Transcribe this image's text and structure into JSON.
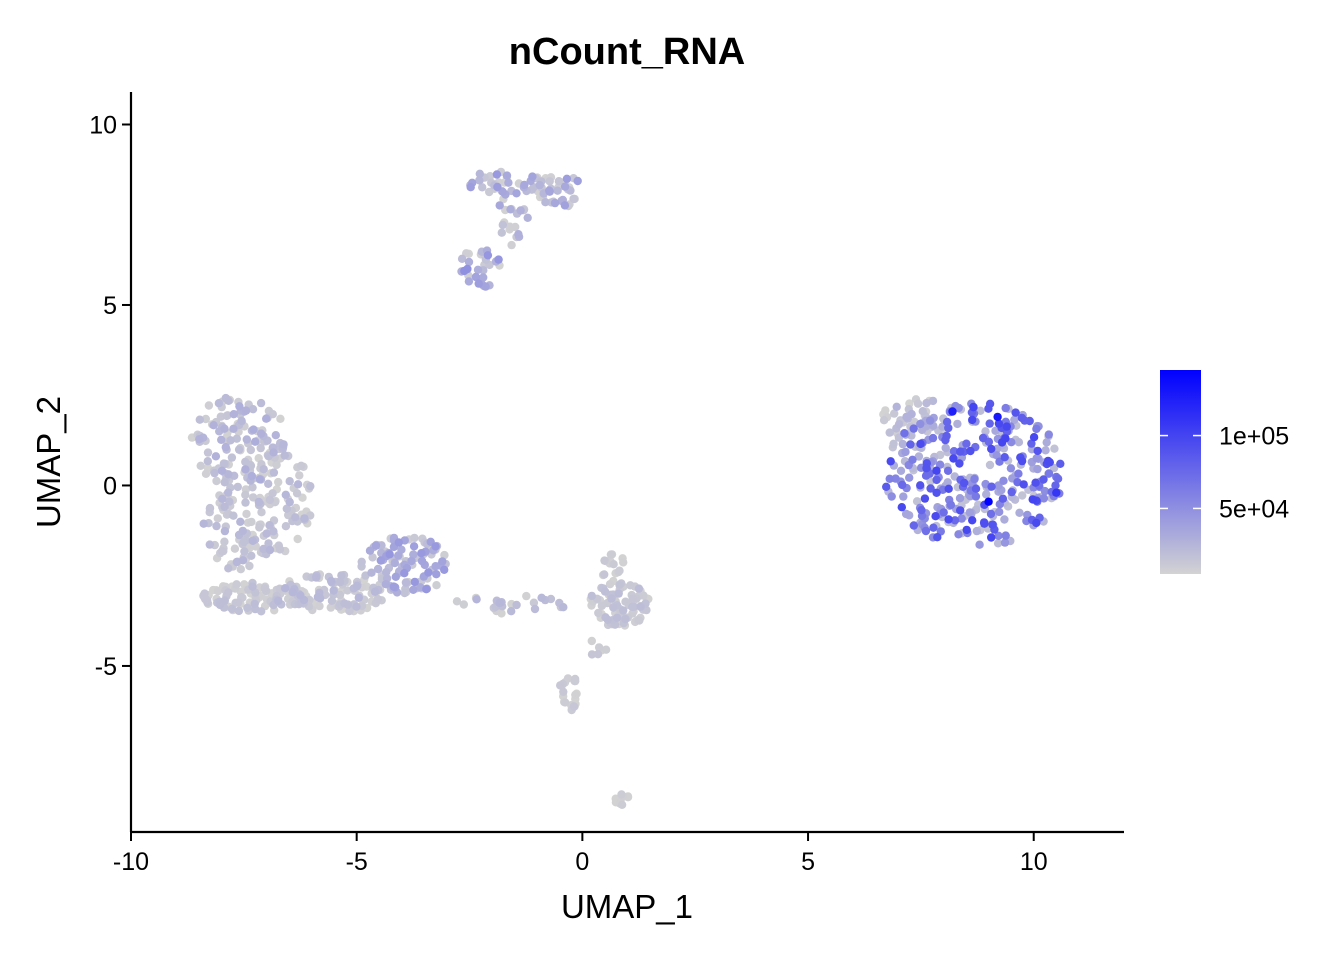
{
  "chart_data": {
    "type": "scatter",
    "title": "nCount_RNA",
    "xlabel": "UMAP_1",
    "ylabel": "UMAP_2",
    "xlim": [
      -10,
      12
    ],
    "ylim": [
      -9.6,
      10.9
    ],
    "xticks": [
      -10,
      -5,
      0,
      5,
      10
    ],
    "xtick_labels": [
      "-10",
      "-5",
      "0",
      "5",
      "10"
    ],
    "yticks": [
      -5,
      0,
      5,
      10
    ],
    "ytick_labels": [
      "-5",
      "0",
      "5",
      "10"
    ],
    "grid": false,
    "legend_position": "right",
    "color_scale": {
      "low_color": "#d3d3d3",
      "high_color": "#0000ff",
      "min": 5000,
      "max": 145000,
      "ticks": [
        50000,
        100000
      ],
      "tick_labels": [
        "5e+04",
        "1e+05"
      ]
    },
    "clusters": [
      {
        "cx": -7.6,
        "cy": 1.2,
        "rx": 1.1,
        "ry": 1.3,
        "n": 140,
        "vmin": 5000,
        "vmax": 30000
      },
      {
        "cx": -7.6,
        "cy": -1.2,
        "rx": 0.8,
        "ry": 1.2,
        "n": 90,
        "vmin": 5000,
        "vmax": 25000
      },
      {
        "cx": -7.3,
        "cy": -3.1,
        "rx": 1.3,
        "ry": 0.4,
        "n": 90,
        "vmin": 5000,
        "vmax": 20000
      },
      {
        "cx": -5.6,
        "cy": -3.0,
        "rx": 1.3,
        "ry": 0.55,
        "n": 110,
        "vmin": 5000,
        "vmax": 25000
      },
      {
        "cx": -3.9,
        "cy": -2.2,
        "rx": 1.0,
        "ry": 0.8,
        "n": 110,
        "vmin": 8000,
        "vmax": 45000
      },
      {
        "cx": -6.5,
        "cy": -0.5,
        "rx": 0.5,
        "ry": 1.6,
        "n": 50,
        "vmin": 5000,
        "vmax": 25000
      },
      {
        "cx": -1.5,
        "cy": 8.4,
        "rx": 1.1,
        "ry": 0.35,
        "n": 45,
        "vmin": 5000,
        "vmax": 45000
      },
      {
        "cx": -0.5,
        "cy": 8.2,
        "rx": 0.5,
        "ry": 0.5,
        "n": 30,
        "vmin": 5000,
        "vmax": 40000
      },
      {
        "cx": -1.6,
        "cy": 7.3,
        "rx": 0.4,
        "ry": 0.7,
        "n": 20,
        "vmin": 5000,
        "vmax": 35000
      },
      {
        "cx": -2.2,
        "cy": 6.1,
        "rx": 0.5,
        "ry": 0.6,
        "n": 30,
        "vmin": 5000,
        "vmax": 50000
      },
      {
        "cx": -1.6,
        "cy": -3.3,
        "rx": 1.3,
        "ry": 0.25,
        "n": 25,
        "vmin": 5000,
        "vmax": 25000
      },
      {
        "cx": 0.8,
        "cy": -3.3,
        "rx": 0.7,
        "ry": 0.6,
        "n": 80,
        "vmin": 5000,
        "vmax": 20000
      },
      {
        "cx": 0.7,
        "cy": -2.3,
        "rx": 0.3,
        "ry": 0.4,
        "n": 15,
        "vmin": 5000,
        "vmax": 15000
      },
      {
        "cx": -0.3,
        "cy": -5.7,
        "rx": 0.2,
        "ry": 0.6,
        "n": 20,
        "vmin": 5000,
        "vmax": 15000
      },
      {
        "cx": 0.3,
        "cy": -4.4,
        "rx": 0.3,
        "ry": 0.3,
        "n": 6,
        "vmin": 5000,
        "vmax": 15000
      },
      {
        "cx": 0.9,
        "cy": -8.7,
        "rx": 0.2,
        "ry": 0.15,
        "n": 10,
        "vmin": 5000,
        "vmax": 10000
      },
      {
        "cx": 8.7,
        "cy": 0.3,
        "rx": 2.0,
        "ry": 2.0,
        "n": 330,
        "vmin": 15000,
        "vmax": 100000
      },
      {
        "cx": 7.5,
        "cy": 1.8,
        "rx": 0.9,
        "ry": 0.6,
        "n": 40,
        "vmin": 5000,
        "vmax": 30000
      }
    ],
    "max_cells": [
      {
        "x": 8.2,
        "y": 2.05,
        "v": 125000
      },
      {
        "x": 9.0,
        "y": -0.45,
        "v": 145000
      },
      {
        "x": 9.2,
        "y": 1.9,
        "v": 130000
      },
      {
        "x": 10.5,
        "y": -0.2,
        "v": 110000
      }
    ]
  }
}
